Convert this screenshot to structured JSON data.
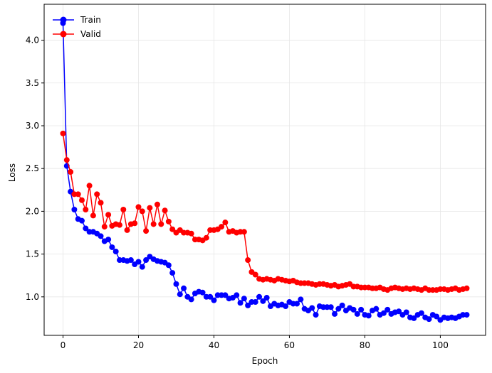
{
  "chart_data": {
    "type": "line",
    "title": "",
    "xlabel": "Epoch",
    "ylabel": "Loss",
    "xlim": [
      -5,
      112
    ],
    "ylim": [
      0.55,
      4.42
    ],
    "xticks": [
      0,
      20,
      40,
      60,
      80,
      100
    ],
    "yticks": [
      1.0,
      1.5,
      2.0,
      2.5,
      3.0,
      3.5,
      4.0
    ],
    "xtick_labels": [
      "0",
      "20",
      "40",
      "60",
      "80",
      "100"
    ],
    "ytick_labels": [
      "1.0",
      "1.5",
      "2.0",
      "2.5",
      "3.0",
      "3.5",
      "4.0"
    ],
    "grid": true,
    "legend_position": "top-left",
    "x": [
      0,
      1,
      2,
      3,
      4,
      5,
      6,
      7,
      8,
      9,
      10,
      11,
      12,
      13,
      14,
      15,
      16,
      17,
      18,
      19,
      20,
      21,
      22,
      23,
      24,
      25,
      26,
      27,
      28,
      29,
      30,
      31,
      32,
      33,
      34,
      35,
      36,
      37,
      38,
      39,
      40,
      41,
      42,
      43,
      44,
      45,
      46,
      47,
      48,
      49,
      50,
      51,
      52,
      53,
      54,
      55,
      56,
      57,
      58,
      59,
      60,
      61,
      62,
      63,
      64,
      65,
      66,
      67,
      68,
      69,
      70,
      71,
      72,
      73,
      74,
      75,
      76,
      77,
      78,
      79,
      80,
      81,
      82,
      83,
      84,
      85,
      86,
      87,
      88,
      89,
      90,
      91,
      92,
      93,
      94,
      95,
      96,
      97,
      98,
      99,
      100,
      101,
      102,
      103,
      104,
      105,
      106,
      107
    ],
    "series": [
      {
        "name": "Train",
        "color": "#0000ff",
        "values": [
          4.2,
          2.53,
          2.23,
          2.02,
          1.91,
          1.89,
          1.8,
          1.76,
          1.76,
          1.74,
          1.71,
          1.65,
          1.67,
          1.58,
          1.53,
          1.43,
          1.43,
          1.42,
          1.43,
          1.38,
          1.41,
          1.35,
          1.43,
          1.47,
          1.44,
          1.42,
          1.41,
          1.4,
          1.37,
          1.28,
          1.15,
          1.03,
          1.1,
          1.0,
          0.97,
          1.04,
          1.06,
          1.05,
          1.0,
          1.0,
          0.96,
          1.02,
          1.02,
          1.02,
          0.98,
          0.99,
          1.02,
          0.93,
          0.98,
          0.9,
          0.94,
          0.94,
          1.0,
          0.95,
          0.99,
          0.89,
          0.92,
          0.9,
          0.91,
          0.89,
          0.94,
          0.92,
          0.92,
          0.97,
          0.86,
          0.84,
          0.87,
          0.79,
          0.89,
          0.88,
          0.88,
          0.88,
          0.8,
          0.86,
          0.9,
          0.84,
          0.87,
          0.85,
          0.8,
          0.85,
          0.79,
          0.78,
          0.84,
          0.86,
          0.79,
          0.81,
          0.85,
          0.8,
          0.82,
          0.83,
          0.79,
          0.82,
          0.76,
          0.75,
          0.79,
          0.81,
          0.76,
          0.74,
          0.79,
          0.77,
          0.73,
          0.76,
          0.75,
          0.76,
          0.75,
          0.77,
          0.79,
          0.79
        ]
      },
      {
        "name": "Valid",
        "color": "#ff0000",
        "values": [
          2.91,
          2.6,
          2.46,
          2.2,
          2.2,
          2.13,
          2.02,
          2.3,
          1.95,
          2.2,
          2.1,
          1.82,
          1.96,
          1.83,
          1.85,
          1.84,
          2.02,
          1.78,
          1.85,
          1.86,
          2.05,
          2.0,
          1.77,
          2.04,
          1.85,
          2.08,
          1.85,
          2.01,
          1.88,
          1.79,
          1.75,
          1.78,
          1.75,
          1.75,
          1.74,
          1.67,
          1.67,
          1.66,
          1.69,
          1.78,
          1.78,
          1.79,
          1.82,
          1.87,
          1.76,
          1.77,
          1.75,
          1.76,
          1.76,
          1.43,
          1.29,
          1.26,
          1.21,
          1.2,
          1.21,
          1.2,
          1.19,
          1.21,
          1.2,
          1.19,
          1.18,
          1.19,
          1.17,
          1.16,
          1.16,
          1.16,
          1.15,
          1.14,
          1.15,
          1.15,
          1.14,
          1.13,
          1.14,
          1.12,
          1.13,
          1.14,
          1.15,
          1.12,
          1.12,
          1.11,
          1.11,
          1.11,
          1.1,
          1.1,
          1.11,
          1.09,
          1.08,
          1.1,
          1.11,
          1.1,
          1.09,
          1.1,
          1.09,
          1.1,
          1.09,
          1.08,
          1.1,
          1.08,
          1.08,
          1.08,
          1.09,
          1.09,
          1.08,
          1.09,
          1.1,
          1.08,
          1.09,
          1.1
        ]
      }
    ]
  }
}
